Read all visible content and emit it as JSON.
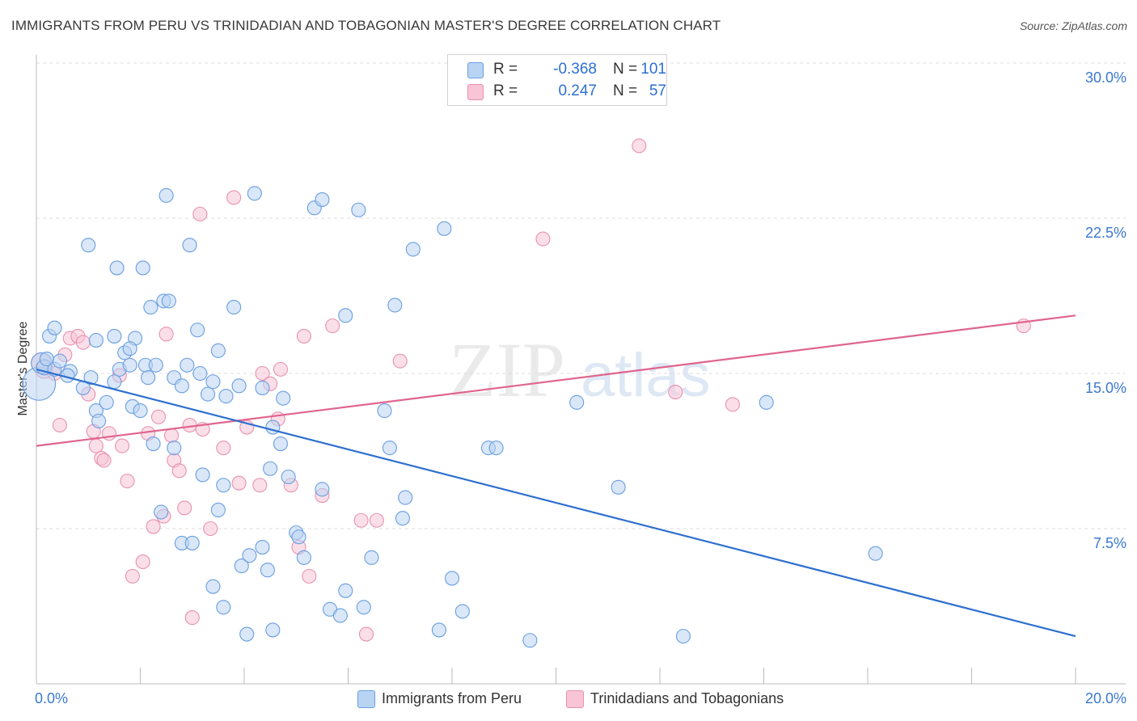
{
  "header": {
    "title": "IMMIGRANTS FROM PERU VS TRINIDADIAN AND TOBAGONIAN MASTER'S DEGREE CORRELATION CHART",
    "source": "Source: ZipAtlas.com"
  },
  "legend": {
    "rows": [
      {
        "r_label": "R =",
        "r_value": "-0.368",
        "n_label": "N =",
        "n_value": "101"
      },
      {
        "r_label": "R =",
        "r_value": "0.247",
        "n_label": "N =",
        "n_value": "57"
      }
    ]
  },
  "bottom_legend": {
    "peru": "Immigrants from Peru",
    "trini": "Trinidadians and Tobagonians"
  },
  "watermark": {
    "zip": "ZIP",
    "atlas": "atlas"
  },
  "colors": {
    "peru_fill": "#b9d3f3",
    "peru_stroke": "#6a9ee0",
    "peru_line": "#2e6fd0",
    "trini_fill": "#f8c4d6",
    "trini_stroke": "#e891b1",
    "trini_line": "#e0648e",
    "axis_text": "#3a78d0",
    "grid": "#dcdcdc"
  },
  "chart_data": {
    "type": "scatter",
    "title": "IMMIGRANTS FROM PERU VS TRINIDADIAN AND TOBAGONIAN MASTER'S DEGREE CORRELATION CHART",
    "xlabel": "",
    "ylabel": "Master's Degree",
    "xlim": [
      0,
      20
    ],
    "ylim": [
      0,
      30
    ],
    "x_tick_labels": [
      {
        "value": 0,
        "label": "0.0%"
      },
      {
        "value": 20,
        "label": "20.0%"
      }
    ],
    "y_tick_labels": [
      {
        "value": 7.5,
        "label": "7.5%"
      },
      {
        "value": 15,
        "label": "15.0%"
      },
      {
        "value": 22.5,
        "label": "22.5%"
      },
      {
        "value": 30,
        "label": "30.0%"
      }
    ],
    "grid": "horizontal dashed",
    "legend_position": "top-center",
    "series": [
      {
        "name": "Immigrants from Peru",
        "color": "#6a9ee0",
        "R": -0.368,
        "N": 101,
        "trend": {
          "x": [
            0,
            20
          ],
          "y": [
            15.2,
            2.3
          ]
        },
        "points": [
          [
            0.05,
            14.5,
            2.4
          ],
          [
            0.1,
            15.5,
            1.5
          ],
          [
            0.15,
            15.3,
            1.1
          ],
          [
            0.2,
            15.7,
            1
          ],
          [
            0.25,
            16.8,
            1
          ],
          [
            0.35,
            15.2,
            1
          ],
          [
            0.45,
            15.6,
            1
          ],
          [
            0.65,
            15.1,
            1
          ],
          [
            0.9,
            14.3,
            1
          ],
          [
            1.05,
            14.8,
            1
          ],
          [
            1.15,
            13.2,
            1
          ],
          [
            1.2,
            12.7,
            1
          ],
          [
            1.35,
            13.6,
            1
          ],
          [
            1.5,
            14.6,
            1
          ],
          [
            1.6,
            15.2,
            1
          ],
          [
            1.7,
            16.0,
            1
          ],
          [
            1.8,
            15.4,
            1
          ],
          [
            0.35,
            17.2,
            1
          ],
          [
            1.15,
            16.6,
            1
          ],
          [
            1.5,
            16.8,
            1
          ],
          [
            1.9,
            16.7,
            1
          ],
          [
            2.1,
            15.4,
            1
          ],
          [
            2.15,
            14.8,
            1
          ],
          [
            2.3,
            15.4,
            1
          ],
          [
            2.65,
            14.8,
            1
          ],
          [
            2.8,
            14.4,
            1
          ],
          [
            2.9,
            15.4,
            1
          ],
          [
            3.1,
            17.1,
            1
          ],
          [
            3.15,
            15.0,
            1
          ],
          [
            3.3,
            14.0,
            1
          ],
          [
            3.4,
            14.6,
            1
          ],
          [
            3.5,
            16.1,
            1
          ],
          [
            3.9,
            14.4,
            1
          ],
          [
            4.35,
            14.3,
            1
          ],
          [
            4.75,
            13.8,
            1
          ],
          [
            1.0,
            21.2,
            1
          ],
          [
            1.55,
            20.1,
            1
          ],
          [
            2.05,
            20.1,
            1
          ],
          [
            2.45,
            18.5,
            1
          ],
          [
            2.2,
            18.2,
            1
          ],
          [
            2.55,
            18.5,
            1
          ],
          [
            2.95,
            21.2,
            1
          ],
          [
            3.8,
            18.2,
            1
          ],
          [
            2.5,
            23.6,
            1
          ],
          [
            4.2,
            23.7,
            1
          ],
          [
            5.35,
            23.0,
            1
          ],
          [
            5.5,
            23.4,
            1
          ],
          [
            6.2,
            22.9,
            1
          ],
          [
            6.9,
            18.3,
            1
          ],
          [
            7.25,
            21.0,
            1
          ],
          [
            7.85,
            22.0,
            1
          ],
          [
            5.95,
            17.8,
            1
          ],
          [
            1.85,
            13.4,
            1
          ],
          [
            2.0,
            13.2,
            1
          ],
          [
            2.25,
            11.6,
            1
          ],
          [
            2.65,
            11.4,
            1
          ],
          [
            3.2,
            10.1,
            1
          ],
          [
            3.6,
            9.6,
            1
          ],
          [
            3.5,
            8.4,
            1
          ],
          [
            2.4,
            8.3,
            1
          ],
          [
            2.8,
            6.8,
            1
          ],
          [
            3.0,
            6.8,
            1
          ],
          [
            3.95,
            5.7,
            1
          ],
          [
            4.1,
            6.2,
            1
          ],
          [
            4.35,
            6.6,
            1
          ],
          [
            4.45,
            5.5,
            1
          ],
          [
            4.55,
            2.6,
            1
          ],
          [
            3.4,
            4.7,
            1
          ],
          [
            3.6,
            3.7,
            1
          ],
          [
            4.05,
            2.4,
            1
          ],
          [
            4.55,
            12.4,
            1
          ],
          [
            4.7,
            11.6,
            1
          ],
          [
            4.5,
            10.4,
            1
          ],
          [
            4.85,
            10.0,
            1
          ],
          [
            5.0,
            7.3,
            1
          ],
          [
            5.05,
            7.1,
            1
          ],
          [
            5.15,
            6.1,
            1
          ],
          [
            5.5,
            9.4,
            1
          ],
          [
            5.65,
            3.6,
            1
          ],
          [
            5.85,
            3.3,
            1
          ],
          [
            5.95,
            4.5,
            1
          ],
          [
            6.3,
            3.7,
            1
          ],
          [
            6.45,
            6.1,
            1
          ],
          [
            6.7,
            13.2,
            1
          ],
          [
            6.8,
            11.4,
            1
          ],
          [
            7.05,
            8.0,
            1
          ],
          [
            7.1,
            9.0,
            1
          ],
          [
            7.75,
            2.6,
            1
          ],
          [
            8.0,
            5.1,
            1
          ],
          [
            8.2,
            3.5,
            1
          ],
          [
            8.7,
            11.4,
            1
          ],
          [
            8.85,
            11.4,
            1
          ],
          [
            9.5,
            2.1,
            1
          ],
          [
            10.4,
            13.6,
            1
          ],
          [
            11.2,
            9.5,
            1
          ],
          [
            12.45,
            2.3,
            1
          ],
          [
            14.05,
            13.6,
            1
          ],
          [
            16.15,
            6.3,
            1
          ],
          [
            1.8,
            16.2,
            1
          ],
          [
            3.65,
            13.9,
            1
          ],
          [
            0.6,
            14.9,
            1
          ]
        ]
      },
      {
        "name": "Trinidadians and Tobagonians",
        "color": "#e891b1",
        "R": 0.247,
        "N": 57,
        "trend": {
          "x": [
            0,
            20
          ],
          "y": [
            11.5,
            17.8
          ]
        },
        "points": [
          [
            0.1,
            15.5,
            1.5
          ],
          [
            0.15,
            15.2,
            1.3
          ],
          [
            0.35,
            15.0,
            1
          ],
          [
            0.45,
            12.5,
            1
          ],
          [
            0.55,
            15.9,
            1
          ],
          [
            0.65,
            16.7,
            1
          ],
          [
            0.8,
            16.8,
            1
          ],
          [
            0.9,
            16.5,
            1
          ],
          [
            1.0,
            14.0,
            1
          ],
          [
            1.1,
            12.2,
            1
          ],
          [
            1.15,
            11.5,
            1
          ],
          [
            1.25,
            10.9,
            1
          ],
          [
            1.3,
            10.8,
            1
          ],
          [
            1.4,
            12.1,
            1
          ],
          [
            1.6,
            14.9,
            1
          ],
          [
            1.65,
            11.5,
            1
          ],
          [
            1.75,
            9.8,
            1
          ],
          [
            1.85,
            5.2,
            1
          ],
          [
            2.05,
            5.9,
            1
          ],
          [
            2.15,
            12.1,
            1
          ],
          [
            2.25,
            7.6,
            1
          ],
          [
            2.35,
            12.9,
            1
          ],
          [
            2.45,
            8.1,
            1
          ],
          [
            2.5,
            16.9,
            1
          ],
          [
            2.6,
            12.0,
            1
          ],
          [
            2.65,
            10.8,
            1
          ],
          [
            2.75,
            10.3,
            1
          ],
          [
            2.85,
            8.5,
            1
          ],
          [
            2.95,
            12.5,
            1
          ],
          [
            3.0,
            3.2,
            1
          ],
          [
            3.15,
            22.7,
            1
          ],
          [
            3.2,
            12.3,
            1
          ],
          [
            3.35,
            7.5,
            1
          ],
          [
            3.6,
            11.4,
            1
          ],
          [
            3.8,
            23.5,
            1
          ],
          [
            3.9,
            9.7,
            1
          ],
          [
            4.3,
            9.6,
            1
          ],
          [
            4.05,
            12.4,
            1
          ],
          [
            4.35,
            15.0,
            1
          ],
          [
            4.5,
            14.5,
            1
          ],
          [
            4.65,
            12.8,
            1
          ],
          [
            4.7,
            15.2,
            1
          ],
          [
            4.9,
            9.6,
            1
          ],
          [
            5.05,
            6.6,
            1
          ],
          [
            5.15,
            16.8,
            1
          ],
          [
            5.25,
            5.2,
            1
          ],
          [
            5.5,
            9.1,
            1
          ],
          [
            5.7,
            17.3,
            1
          ],
          [
            6.25,
            7.9,
            1
          ],
          [
            6.35,
            2.4,
            1
          ],
          [
            6.55,
            7.9,
            1
          ],
          [
            7.0,
            15.6,
            1
          ],
          [
            9.75,
            21.5,
            1
          ],
          [
            11.6,
            26.0,
            1
          ],
          [
            12.3,
            14.1,
            1
          ],
          [
            13.4,
            13.5,
            1
          ],
          [
            19.0,
            17.3,
            1
          ]
        ]
      }
    ]
  }
}
